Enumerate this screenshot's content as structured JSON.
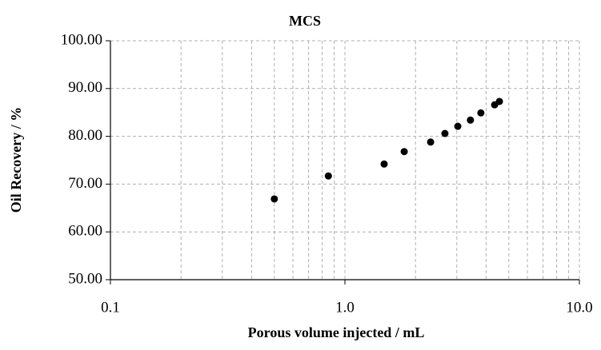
{
  "chart_data": {
    "type": "scatter",
    "title": "MCS",
    "xlabel": "Porous volume injected / mL",
    "ylabel": "Oil Recovery / %",
    "x": [
      0.5,
      0.85,
      1.47,
      1.79,
      2.32,
      2.67,
      3.03,
      3.43,
      3.8,
      4.35,
      4.56
    ],
    "values": [
      66.9,
      71.7,
      74.2,
      76.8,
      78.8,
      80.6,
      82.1,
      83.4,
      84.9,
      86.6,
      87.3
    ],
    "color": "#000000",
    "xscale": "log",
    "xlim": [
      0.1,
      10
    ],
    "xticks": [
      0.1,
      {
        "value": 1,
        "label": "1.0"
      },
      {
        "value": 10,
        "label": "10.0"
      }
    ],
    "xminor_ticks": [
      0.2,
      0.3,
      0.4,
      0.5,
      0.6,
      0.7,
      0.8,
      0.9,
      2,
      3,
      4,
      5,
      6,
      7,
      8,
      9
    ],
    "ylim": [
      50,
      100
    ],
    "yticks": [
      {
        "value": 50,
        "label": "50.00"
      },
      {
        "value": 60,
        "label": "60.00"
      },
      {
        "value": 70,
        "label": "70.00"
      },
      {
        "value": 80,
        "label": "80.00"
      },
      {
        "value": 90,
        "label": "90.00"
      },
      {
        "value": 100,
        "label": "100.00"
      }
    ],
    "grid": true
  }
}
